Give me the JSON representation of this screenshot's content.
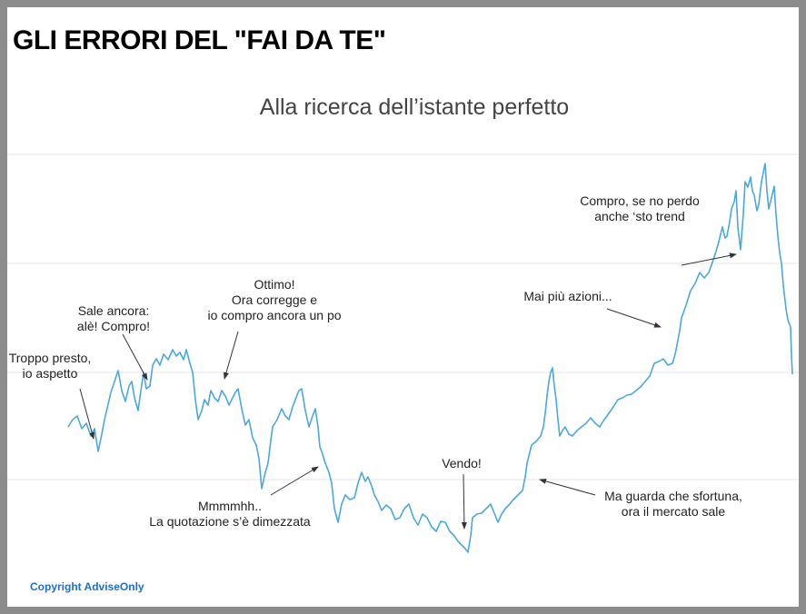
{
  "header": {
    "title": "GLI ERRORI DEL \"FAI DA TE\""
  },
  "chart": {
    "title": "Alla ricerca dell’istante perfetto",
    "annotations": [
      {
        "lines": [
          "Troppo presto,",
          "io aspetto"
        ]
      },
      {
        "lines": [
          "Sale ancora:",
          "alè! Compro!"
        ]
      },
      {
        "lines": [
          "Ottimo!",
          "Ora corregge e",
          "io compro ancora un po"
        ]
      },
      {
        "lines": [
          "Mmmmhh..",
          "La quotazione s’è dimezzata"
        ]
      },
      {
        "lines": [
          "Vendo!"
        ]
      },
      {
        "lines": [
          "Ma guarda che sfortuna,",
          "ora il mercato sale"
        ]
      },
      {
        "lines": [
          "Mai più azioni..."
        ]
      },
      {
        "lines": [
          "Compro, se no perdo",
          "anche ‘sto trend"
        ]
      }
    ]
  },
  "footer": {
    "copyright": "Copyright AdviseOnly"
  }
}
